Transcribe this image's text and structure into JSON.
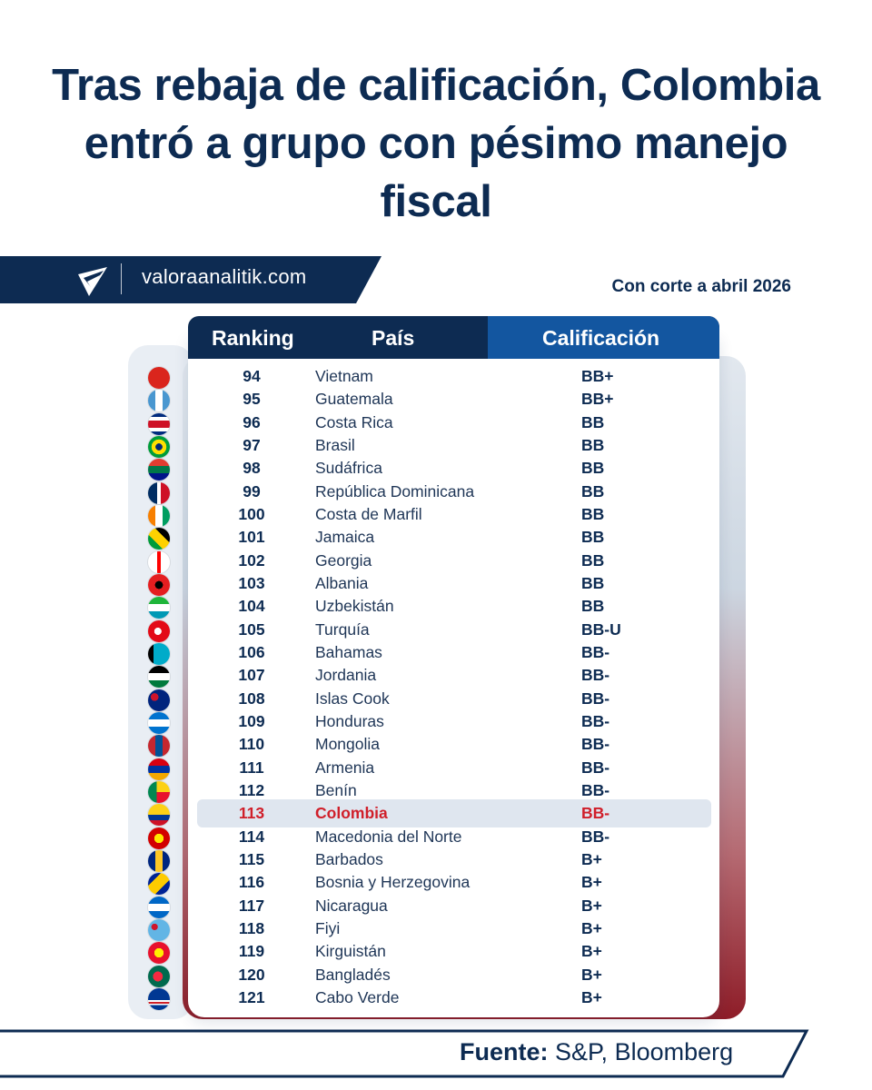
{
  "title": "Tras rebaja de calificación, Colombia entró a grupo con pésimo manejo fiscal",
  "brand": {
    "site": "valoraanalitik.com",
    "logo_icon": "valora-analitik-logo-icon"
  },
  "cutoff": "Con corte a abril 2026",
  "table": {
    "headers": {
      "ranking": "Ranking",
      "country": "País",
      "rating": "Calificación"
    },
    "highlighted_rank": "113",
    "rows": [
      {
        "rank": "94",
        "country": "Vietnam",
        "rating": "BB+",
        "flag": "vietnam-flag-icon",
        "flag_css": "linear-gradient(#da251d,#da251d)"
      },
      {
        "rank": "95",
        "country": "Guatemala",
        "rating": "BB+",
        "flag": "guatemala-flag-icon",
        "flag_css": "linear-gradient(90deg,#4997d0 33%,#ffffff 33% 67%,#4997d0 67%)"
      },
      {
        "rank": "96",
        "country": "Costa Rica",
        "rating": "BB",
        "flag": "costa-rica-flag-icon",
        "flag_css": "linear-gradient(#002b7f 17%,#ffffff 17% 33%,#ce1126 33% 67%,#ffffff 67% 83%,#002b7f 83%)"
      },
      {
        "rank": "97",
        "country": "Brasil",
        "rating": "BB",
        "flag": "brazil-flag-icon",
        "flag_css": "radial-gradient(circle,#002776 22%,#ffdf00 23% 48%,#009c3b 49%)"
      },
      {
        "rank": "98",
        "country": "Sudáfrica",
        "rating": "BB",
        "flag": "south-africa-flag-icon",
        "flag_css": "linear-gradient(#e03c31 33%,#007749 33% 67%,#001489 67%)"
      },
      {
        "rank": "99",
        "country": "República Dominicana",
        "rating": "BB",
        "flag": "dominican-republic-flag-icon",
        "flag_css": "linear-gradient(90deg,#002d62 42%,#ffffff 42% 58%,#ce1126 58%)"
      },
      {
        "rank": "100",
        "country": "Costa de Marfil",
        "rating": "BB",
        "flag": "ivory-coast-flag-icon",
        "flag_css": "linear-gradient(90deg,#f77f00 33%,#ffffff 33% 67%,#009e60 67%)"
      },
      {
        "rank": "101",
        "country": "Jamaica",
        "rating": "BB",
        "flag": "jamaica-flag-icon",
        "flag_css": "linear-gradient(45deg,#009b3a 35%,#fed100 35% 65%,#000000 65%)"
      },
      {
        "rank": "102",
        "country": "Georgia",
        "rating": "BB",
        "flag": "georgia-flag-icon",
        "flag_css": "linear-gradient(90deg,#ffffff 42%,#ff0000 42% 58%,#ffffff 58%)"
      },
      {
        "rank": "103",
        "country": "Albania",
        "rating": "BB",
        "flag": "albania-flag-icon",
        "flag_css": "radial-gradient(circle,#000000 25%,#e41e20 26%)"
      },
      {
        "rank": "104",
        "country": "Uzbekistán",
        "rating": "BB",
        "flag": "uzbekistan-flag-icon",
        "flag_css": "linear-gradient(#1eb53a 33%,#ffffff 33% 67%,#0099b5 67%)"
      },
      {
        "rank": "105",
        "country": "Turquía",
        "rating": "BB-U",
        "flag": "turkey-flag-icon",
        "flag_css": "radial-gradient(circle at 45% 50%,#ffffff 22%,#e30a17 23%)"
      },
      {
        "rank": "106",
        "country": "Bahamas",
        "rating": "BB-",
        "flag": "bahamas-flag-icon",
        "flag_css": "linear-gradient(90deg,#000000 25%,#00abc9 25% 100%)"
      },
      {
        "rank": "107",
        "country": "Jordania",
        "rating": "BB-",
        "flag": "jordan-flag-icon",
        "flag_css": "linear-gradient(#000000 33%,#ffffff 33% 67%,#007a3d 67%)"
      },
      {
        "rank": "108",
        "country": "Islas Cook",
        "rating": "BB-",
        "flag": "cook-islands-flag-icon",
        "flag_css": "radial-gradient(circle at 30% 35%,#cf142b 18%,#00247d 19%)"
      },
      {
        "rank": "109",
        "country": "Honduras",
        "rating": "BB-",
        "flag": "honduras-flag-icon",
        "flag_css": "linear-gradient(#0073cf 33%,#ffffff 33% 67%,#0073cf 67%)"
      },
      {
        "rank": "110",
        "country": "Mongolia",
        "rating": "BB-",
        "flag": "mongolia-flag-icon",
        "flag_css": "linear-gradient(90deg,#c4272f 33%,#015197 33% 67%,#c4272f 67%)"
      },
      {
        "rank": "111",
        "country": "Armenia",
        "rating": "BB-",
        "flag": "armenia-flag-icon",
        "flag_css": "linear-gradient(#d90012 33%,#0033a0 33% 67%,#f2a800 67%)"
      },
      {
        "rank": "112",
        "country": "Benín",
        "rating": "BB-",
        "flag": "benin-flag-icon",
        "flag_css": "linear-gradient(90deg,#008751 40%,transparent 40%),linear-gradient(#fcd116 50%,#e8112d 50%)"
      },
      {
        "rank": "113",
        "country": "Colombia",
        "rating": "BB-",
        "flag": "colombia-flag-icon",
        "flag_css": "linear-gradient(#fcd116 50%,#003893 50% 75%,#ce1126 75%)"
      },
      {
        "rank": "114",
        "country": "Macedonia del Norte",
        "rating": "BB-",
        "flag": "north-macedonia-flag-icon",
        "flag_css": "radial-gradient(circle,#ffe600 30%,#d20000 31%)"
      },
      {
        "rank": "115",
        "country": "Barbados",
        "rating": "B+",
        "flag": "barbados-flag-icon",
        "flag_css": "linear-gradient(90deg,#00267f 33%,#ffc726 33% 67%,#00267f 67%)"
      },
      {
        "rank": "116",
        "country": "Bosnia y Herzegovina",
        "rating": "B+",
        "flag": "bosnia-flag-icon",
        "flag_css": "linear-gradient(135deg,#002395 30%,#fecb00 30% 65%,#002395 65%)"
      },
      {
        "rank": "117",
        "country": "Nicaragua",
        "rating": "B+",
        "flag": "nicaragua-flag-icon",
        "flag_css": "linear-gradient(#0067c6 33%,#ffffff 33% 67%,#0067c6 67%)"
      },
      {
        "rank": "118",
        "country": "Fiyi",
        "rating": "B+",
        "flag": "fiji-flag-icon",
        "flag_css": "radial-gradient(circle at 30% 35%,#cf142b 15%,#62b5e5 16%)"
      },
      {
        "rank": "119",
        "country": "Kirguistán",
        "rating": "B+",
        "flag": "kyrgyzstan-flag-icon",
        "flag_css": "radial-gradient(circle,#ffef00 30%,#e8112d 31%)"
      },
      {
        "rank": "120",
        "country": "Bangladés",
        "rating": "B+",
        "flag": "bangladesh-flag-icon",
        "flag_css": "radial-gradient(circle at 45% 50%,#f42a41 30%,#006a4e 31%)"
      },
      {
        "rank": "121",
        "country": "Cabo Verde",
        "rating": "B+",
        "flag": "cape-verde-flag-icon",
        "flag_css": "linear-gradient(#003893 55%,#ffffff 55% 62%,#cf2027 62% 70%,#ffffff 70% 77%,#003893 77%)"
      }
    ]
  },
  "footer": {
    "label": "Fuente:",
    "source": "S&P, Bloomberg"
  },
  "colors": {
    "navy": "#0d2b52",
    "blue_accent": "#1356a0",
    "highlight_red": "#d01f2a",
    "highlight_row": "#dfe6ef"
  }
}
